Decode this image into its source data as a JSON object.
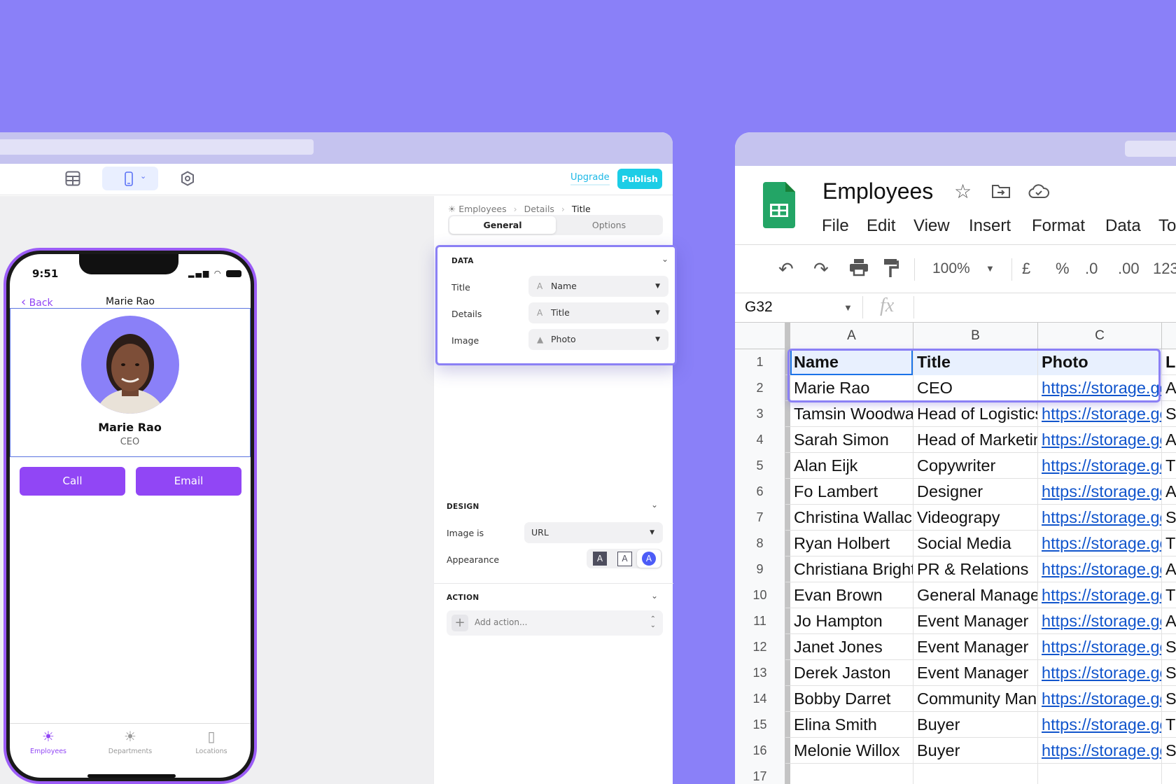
{
  "builder": {
    "toolbar": {
      "upgrade": "Upgrade",
      "publish": "Publish",
      "icons": [
        "table-icon",
        "phone-icon",
        "chevron-down-icon",
        "gear-icon"
      ]
    },
    "breadcrumb": [
      "Employees",
      "Details",
      "Title"
    ],
    "tabs": [
      "General",
      "Options"
    ],
    "data_section": {
      "heading": "DATA",
      "rows": [
        {
          "label": "Title",
          "value": "Name",
          "icon": "text-icon"
        },
        {
          "label": "Details",
          "value": "Title",
          "icon": "text-icon"
        },
        {
          "label": "Image",
          "value": "Photo",
          "icon": "image-icon"
        }
      ]
    },
    "design_section": {
      "heading": "DESIGN",
      "image_is_label": "Image is",
      "image_is_value": "URL",
      "appearance_label": "Appearance",
      "appearance_options": [
        "A",
        "A",
        "A"
      ],
      "appearance_selected": 2
    },
    "action_section": {
      "heading": "ACTION",
      "placeholder": "Add action..."
    },
    "accent": "#9146f5",
    "publish_color": "#1ccde6"
  },
  "phone": {
    "time": "9:51",
    "back": "Back",
    "nav_title": "Marie Rao",
    "name": "Marie Rao",
    "title": "CEO",
    "buttons": [
      "Call",
      "Email"
    ],
    "tabs": [
      {
        "label": "Employees",
        "active": true
      },
      {
        "label": "Departments",
        "active": false
      },
      {
        "label": "Locations",
        "active": false
      }
    ]
  },
  "sheet": {
    "title": "Employees",
    "menu": [
      "File",
      "Edit",
      "View",
      "Insert",
      "Format",
      "Data",
      "To"
    ],
    "toolbar": {
      "zoom": "100%",
      "currency": "£",
      "percent": "%",
      "dec_less": ".0",
      "dec_more": ".00",
      "format": "123"
    },
    "name_box": "G32",
    "fx": "fx",
    "columns": [
      "A",
      "B",
      "C"
    ],
    "rows": [
      [
        "Name",
        "Title",
        "Photo",
        "L"
      ],
      [
        "Marie Rao",
        "CEO",
        "https://storage.go",
        "A"
      ],
      [
        "Tamsin Woodwa",
        "Head of Logistics",
        "https://storage.go",
        "S"
      ],
      [
        "Sarah Simon",
        "Head of Marketin",
        "https://storage.go",
        "A"
      ],
      [
        "Alan Eijk",
        "Copywriter",
        "https://storage.go",
        "T"
      ],
      [
        "Fo Lambert",
        "Designer",
        "https://storage.go",
        "A"
      ],
      [
        "Christina Wallac",
        "Videograpy",
        "https://storage.go",
        "S"
      ],
      [
        "Ryan Holbert",
        "Social Media",
        "https://storage.go",
        "T"
      ],
      [
        "Christiana Bright",
        "PR & Relations",
        "https://storage.go",
        "A"
      ],
      [
        "Evan Brown",
        "General Manage",
        "https://storage.go",
        "T"
      ],
      [
        "Jo Hampton",
        "Event Manager",
        "https://storage.go",
        "A"
      ],
      [
        "Janet Jones",
        "Event Manager",
        "https://storage.go",
        "S"
      ],
      [
        "Derek Jaston",
        "Event Manager",
        "https://storage.go",
        "S"
      ],
      [
        "Bobby Darret",
        "Community Mana",
        "https://storage.go",
        "S"
      ],
      [
        "Elina Smith",
        "Buyer",
        "https://storage.go",
        "T"
      ],
      [
        "Melonie Willox",
        "Buyer",
        "https://storage.go",
        "S"
      ],
      [
        "",
        "",
        "",
        ""
      ]
    ],
    "row_numbers": [
      "1",
      "2",
      "3",
      "4",
      "5",
      "6",
      "7",
      "8",
      "9",
      "10",
      "11",
      "12",
      "13",
      "14",
      "15",
      "16",
      "17"
    ],
    "brand_color": "#23a566"
  }
}
